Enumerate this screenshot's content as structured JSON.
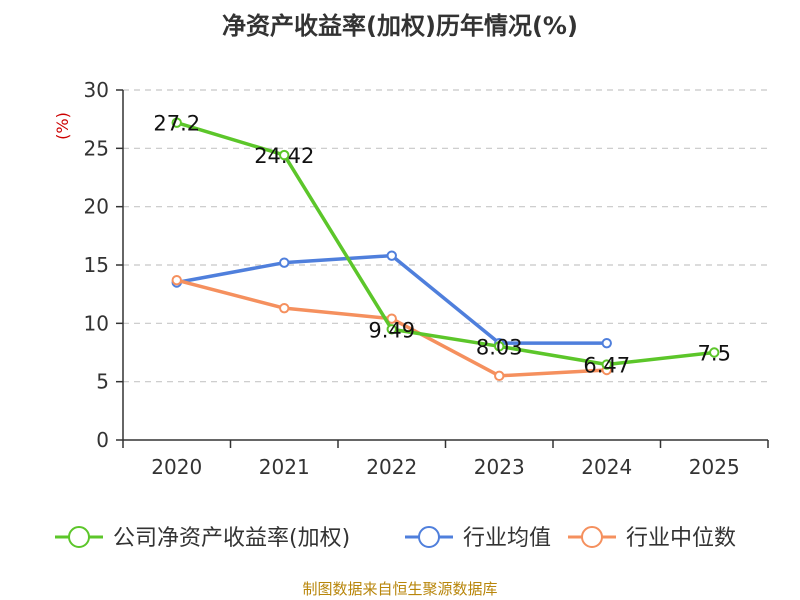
{
  "title": "净资产收益率(加权)历年情况(%)",
  "source": "制图数据来自恒生聚源数据库",
  "colors": {
    "roe": "#5cc62a",
    "industry_avg": "#4f7fdc",
    "industry_median": "#f5905e",
    "unit_label": "#cc0000",
    "source": "#b8860b"
  },
  "chart_data": {
    "type": "line",
    "title": "净资产收益率(加权)历年情况(%)",
    "ylabel": "(%)",
    "xlabel": "",
    "categories": [
      "2020",
      "2021",
      "2022",
      "2023",
      "2024",
      "2025"
    ],
    "ylim": [
      0,
      30
    ],
    "yticks": [
      0,
      5,
      10,
      15,
      20,
      25,
      30
    ],
    "grid": true,
    "legend_position": "bottom",
    "series": [
      {
        "key": "roe",
        "name": "公司净资产收益率(加权)",
        "values": [
          27.2,
          24.42,
          9.49,
          8.03,
          6.47,
          7.5
        ],
        "labels": [
          "27.2",
          "24.42",
          "9.49",
          "8.03",
          "6.47",
          "7.5"
        ]
      },
      {
        "key": "industry_avg",
        "name": "行业均值",
        "values": [
          13.5,
          15.2,
          15.8,
          8.3,
          8.3,
          null
        ]
      },
      {
        "key": "industry_median",
        "name": "行业中位数",
        "values": [
          13.7,
          11.3,
          10.4,
          5.5,
          6.0,
          null
        ]
      }
    ]
  }
}
